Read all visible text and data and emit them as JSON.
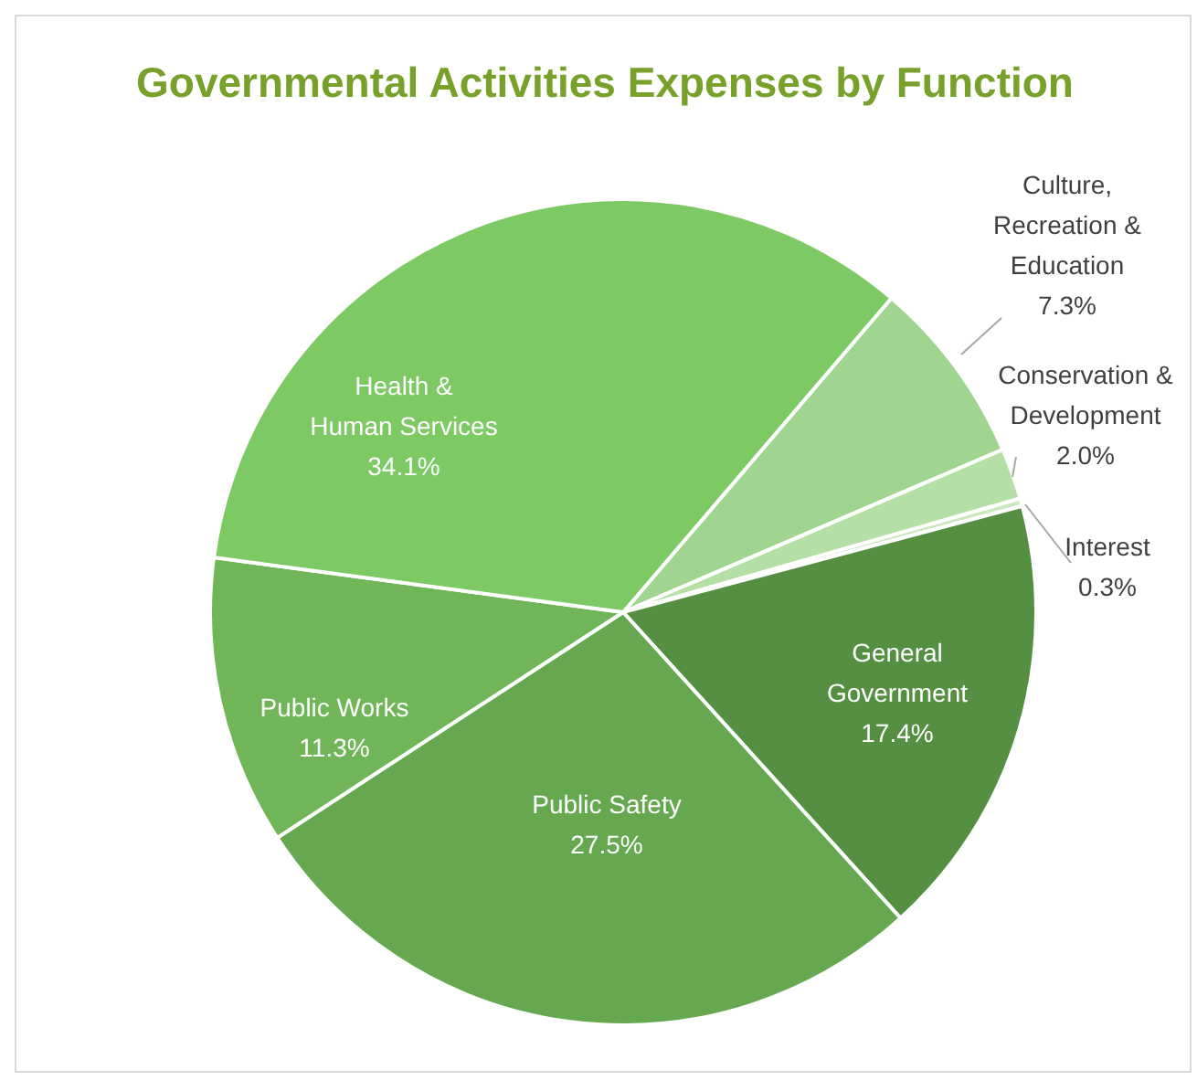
{
  "chart_data": {
    "type": "pie",
    "title": "Governmental Activities Expenses by Function",
    "categories": [
      "Culture, Recreation & Education",
      "Conservation & Development",
      "Interest",
      "General Government",
      "Public Safety",
      "Public Works",
      "Health & Human Services"
    ],
    "values": [
      7.3,
      2.0,
      0.3,
      17.4,
      27.5,
      11.3,
      34.1
    ],
    "value_labels": [
      "7.3%",
      "2.0%",
      "0.3%",
      "17.4%",
      "27.5%",
      "11.3%",
      "34.1%"
    ],
    "colors": [
      "#9fd58f",
      "#b5e0a5",
      "#c9e9bd",
      "#558f42",
      "#66a84f",
      "#70b658",
      "#7dc964"
    ]
  }
}
